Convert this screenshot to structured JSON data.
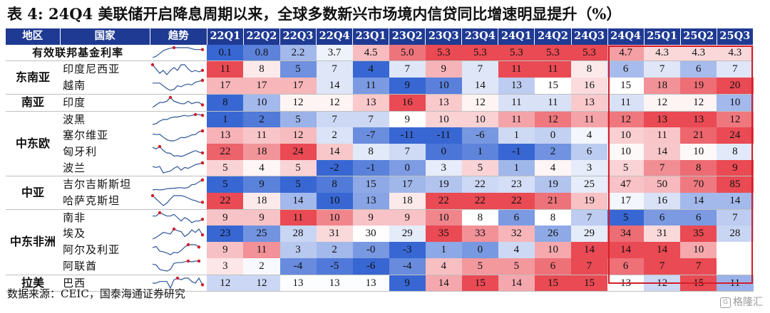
{
  "title": "表 4:  24Q4 美联储开启降息周期以来，全球多数新兴市场境内信贷同比增速明显提升（%）",
  "headers": [
    "地区",
    "国家",
    "趋势",
    "22Q1",
    "22Q2",
    "22Q3",
    "22Q4",
    "23Q1",
    "23Q2",
    "23Q3",
    "23Q4",
    "24Q1",
    "24Q2",
    "24Q3",
    "24Q4",
    "25Q1",
    "25Q2",
    "25Q3"
  ],
  "regions": [
    {
      "label": "",
      "start": 0,
      "span": 1
    },
    {
      "label": "东南亚",
      "start": 1,
      "span": 2
    },
    {
      "label": "南亚",
      "start": 3,
      "span": 1
    },
    {
      "label": "中东欧",
      "start": 4,
      "span": 4
    },
    {
      "label": "中亚",
      "start": 8,
      "span": 2
    },
    {
      "label": "中东非洲",
      "start": 10,
      "span": 4
    },
    {
      "label": "拉美",
      "start": 14,
      "span": 1
    }
  ],
  "rows": [
    {
      "name": "有效联邦基金利率",
      "values": [
        "0.1",
        "0.8",
        "2.2",
        "3.7",
        "4.5",
        "5.0",
        "5.3",
        "5.3",
        "5.3",
        "5.3",
        "5.3",
        "4.7",
        "4.3",
        "4.3",
        "4.3"
      ]
    },
    {
      "name": "印度尼西亚",
      "values": [
        "11",
        "8",
        "5",
        "7",
        "4",
        "7",
        "9",
        "7",
        "11",
        "11",
        "8",
        "6",
        "7",
        "6",
        "7"
      ]
    },
    {
      "name": "越南",
      "values": [
        "17",
        "17",
        "17",
        "14",
        "11",
        "9",
        "10",
        "14",
        "13",
        "15",
        "16",
        "15",
        "18",
        "19",
        "20"
      ]
    },
    {
      "name": "印度",
      "values": [
        "8",
        "10",
        "12",
        "12",
        "13",
        "16",
        "13",
        "12",
        "11",
        "11",
        "13",
        "11",
        "12",
        "12",
        "10"
      ]
    },
    {
      "name": "波黑",
      "values": [
        "1",
        "2",
        "5",
        "7",
        "7",
        "9",
        "10",
        "10",
        "11",
        "12",
        "11",
        "12",
        "13",
        "13",
        "12"
      ]
    },
    {
      "name": "塞尔维亚",
      "values": [
        "13",
        "11",
        "12",
        "2",
        "-7",
        "-11",
        "-11",
        "-6",
        "1",
        "0",
        "4",
        "10",
        "11",
        "21",
        "24"
      ]
    },
    {
      "name": "匈牙利",
      "values": [
        "22",
        "18",
        "24",
        "14",
        "8",
        "7",
        "0",
        "1",
        "-1",
        "2",
        "6",
        "10",
        "14",
        "10",
        "8"
      ]
    },
    {
      "name": "波兰",
      "values": [
        "5",
        "4",
        "5",
        "-2",
        "-1",
        "0",
        "3",
        "5",
        "1",
        "4",
        "3",
        "5",
        "7",
        "8",
        "9"
      ]
    },
    {
      "name": "吉尔吉斯斯坦",
      "values": [
        "5",
        "9",
        "5",
        "8",
        "15",
        "17",
        "19",
        "22",
        "23",
        "19",
        "25",
        "47",
        "50",
        "70",
        "85"
      ]
    },
    {
      "name": "哈萨克斯坦",
      "values": [
        "22",
        "18",
        "14",
        "10",
        "13",
        "18",
        "22",
        "22",
        "22",
        "21",
        "19",
        "17",
        "16",
        "14",
        "14"
      ]
    },
    {
      "name": "南非",
      "values": [
        "9",
        "9",
        "11",
        "10",
        "9",
        "9",
        "10",
        "8",
        "6",
        "8",
        "7",
        "5",
        "6",
        "6",
        "7"
      ]
    },
    {
      "name": "埃及",
      "values": [
        "23",
        "25",
        "28",
        "31",
        "30",
        "29",
        "35",
        "33",
        "32",
        "26",
        "29",
        "34",
        "31",
        "35",
        "28"
      ]
    },
    {
      "name": "阿尔及利亚",
      "values": [
        "9",
        "11",
        "3",
        "2",
        "-0",
        "-3",
        "1",
        "0",
        "4",
        "10",
        "14",
        "14",
        "14",
        "10",
        ""
      ]
    },
    {
      "name": "阿联酋",
      "values": [
        "3",
        "2",
        "-4",
        "-5",
        "-6",
        "-4",
        "4",
        "5",
        "5",
        "6",
        "7",
        "6",
        "7",
        "7",
        ""
      ]
    },
    {
      "name": "巴西",
      "values": [
        "12",
        "12",
        "13",
        "13",
        "13",
        "9",
        "14",
        "15",
        "14",
        "15",
        "15",
        "13",
        "12",
        "15",
        "11"
      ]
    }
  ],
  "highlight_label": "24Q4–25Q3",
  "source": "数据来源：CEIC，国泰海通证券研究",
  "watermark": "格隆汇",
  "colors": {
    "header_bg": "#1f3a93",
    "high": "#e8404a",
    "low": "#2e5fd1",
    "mid": "#ffffff",
    "box": "#d21f2a"
  }
}
